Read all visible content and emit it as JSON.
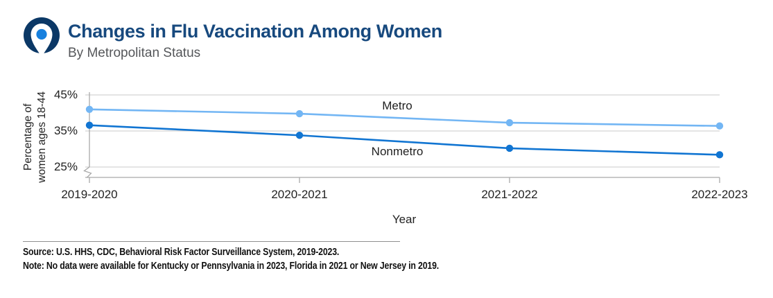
{
  "header": {
    "title": "Changes in Flu Vaccination Among Women",
    "subtitle": "By Metropolitan Status",
    "icon": "location-pin-icon"
  },
  "colors": {
    "title_navy": "#17497E",
    "icon_navy": "#0B3866",
    "icon_dot_blue": "#1780DE",
    "metro_line": "#73B6F4",
    "nonmetro_line": "#1175D2",
    "subtitle_gray": "#55575A",
    "grid_gray": "#D4D4D4",
    "axis_gray": "#A9A9A9"
  },
  "chart_data": {
    "type": "line",
    "title": "Changes in Flu Vaccination Among Women",
    "subtitle": "By Metropolitan Status",
    "categories": [
      "2019-2020",
      "2020-2021",
      "2021-2022",
      "2022-2023"
    ],
    "series": [
      {
        "name": "Metro",
        "values": [
          41.0,
          39.8,
          37.3,
          36.4
        ],
        "color": "#73B6F4"
      },
      {
        "name": "Nonmetro",
        "values": [
          36.6,
          33.8,
          30.2,
          28.4
        ],
        "color": "#1175D2"
      }
    ],
    "xlabel": "Year",
    "ylabel": "Percentage of women ages 18-44",
    "ylabel_lines": [
      "Percentage of",
      "women ages 18-44"
    ],
    "yticks": [
      45,
      35,
      25
    ],
    "ytick_labels": [
      "45%",
      "35%",
      "25%"
    ],
    "ylim": [
      25,
      45
    ],
    "axis_break": true,
    "grid": "horizontal-only",
    "legend": "inline-labels"
  },
  "footer": {
    "source": "Source: U.S. HHS, CDC, Behavioral Risk Factor Surveillance System, 2019-2023.",
    "note": "Note: No data were available for Kentucky or Pennsylvania in 2023, Florida in 2021 or New Jersey in 2019."
  }
}
